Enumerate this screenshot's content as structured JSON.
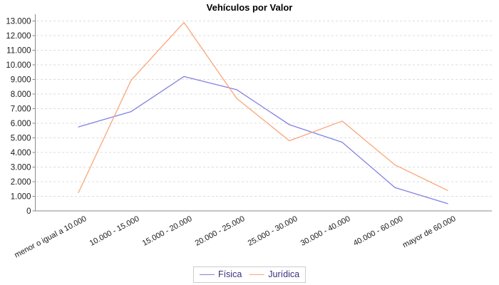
{
  "title": "Vehículos por Valor",
  "colors": {
    "series_fisica": "#8181e3",
    "series_juridica": "#faa578",
    "gridline": "#dcdcdc",
    "axis": "#8a8a8a",
    "tick_label": "#1a1a1a",
    "legend_text": "#3c2e7d",
    "legend_border": "#cccccc",
    "background": "#ffffff"
  },
  "chart_data": {
    "type": "line",
    "title": "Vehículos por Valor",
    "xlabel": "",
    "ylabel": "",
    "categories": [
      "menor o igual a 10.000",
      "10.000 - 15.000",
      "15.000 - 20.000",
      "20.000 - 25.000",
      "25.000 - 30.000",
      "30.000 - 40.000",
      "40.000 - 60.000",
      "mayor de 60.000"
    ],
    "series": [
      {
        "name": "Física",
        "color": "#8181e3",
        "values": [
          5750,
          6800,
          9200,
          8300,
          5900,
          4700,
          1600,
          500
        ]
      },
      {
        "name": "Jurídica",
        "color": "#faa578",
        "values": [
          1250,
          8950,
          12900,
          7700,
          4800,
          6150,
          3150,
          1400
        ]
      }
    ],
    "ylim": [
      0,
      13000
    ],
    "ytick_step": 1000,
    "ytick_labels": [
      "0",
      "1.000",
      "2.000",
      "3.000",
      "4.000",
      "5.000",
      "6.000",
      "7.000",
      "8.000",
      "9.000",
      "10.000",
      "11.000",
      "12.000",
      "13.000"
    ],
    "grid": true,
    "gridline_style": "dashed",
    "legend_position": "bottom",
    "legend_entries": [
      "Física",
      "Jurídica"
    ]
  }
}
